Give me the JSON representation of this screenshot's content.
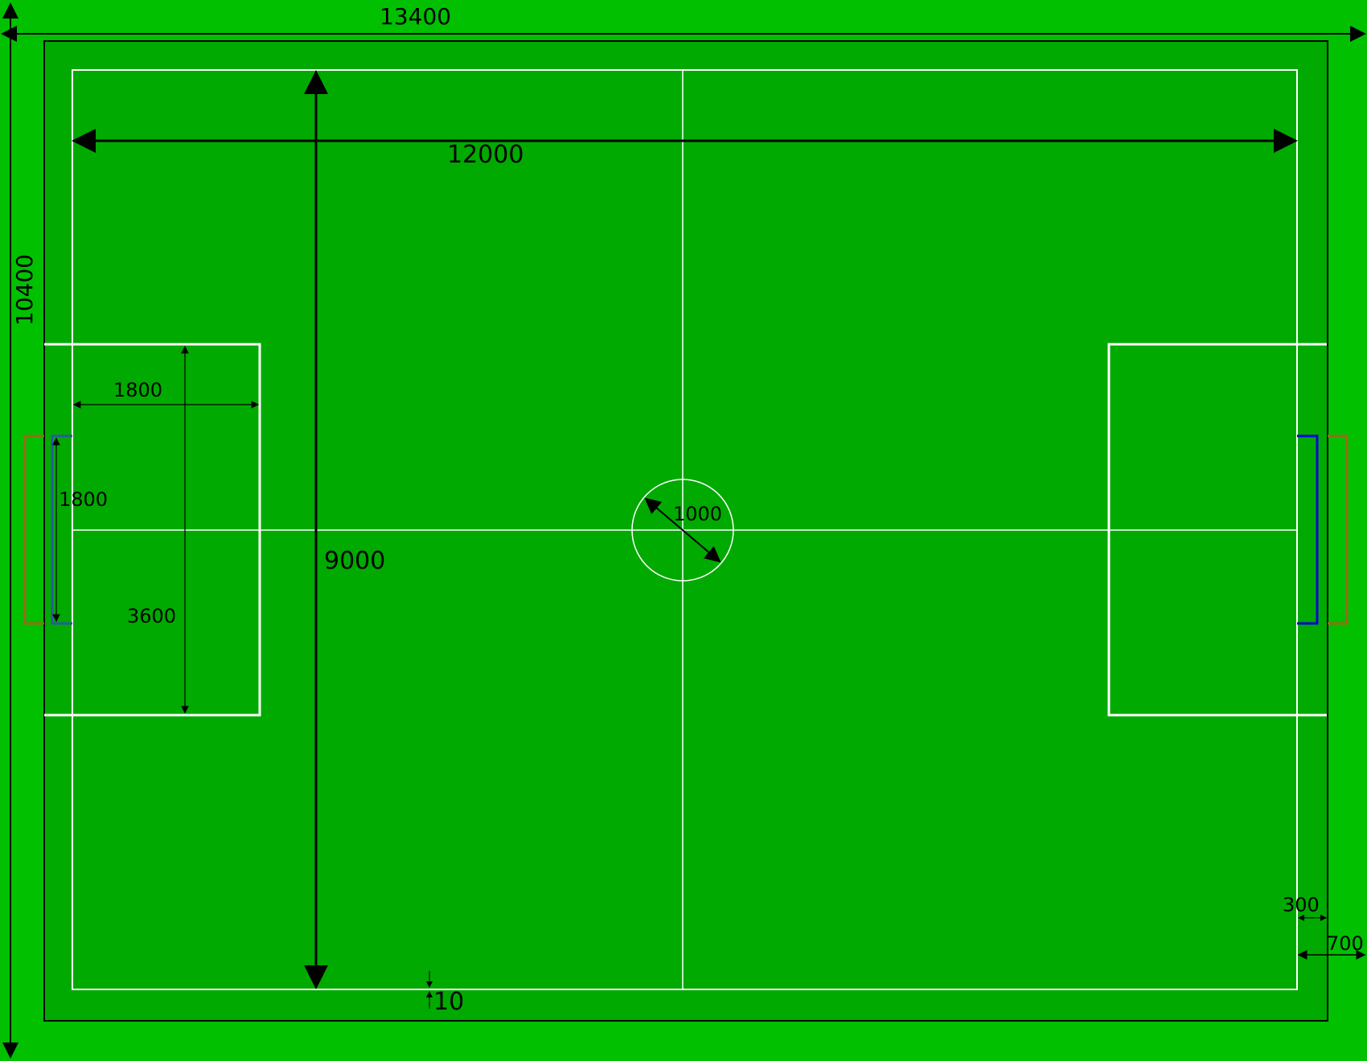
{
  "colors": {
    "outer_area": "#00c000",
    "carpet": "#00aa00",
    "field_line": "#ffffff",
    "wall": "#000000",
    "goal_left_inner": "#2a5aa0",
    "goal_right_inner": "#0000dd",
    "goal_outer": "#9a6a1a"
  },
  "dimensions": {
    "total_length": "13400",
    "total_width": "10400",
    "field_length": "12000",
    "field_width": "9000",
    "penalty_depth": "1800",
    "goal_width": "1800",
    "penalty_width": "3600",
    "center_circle": "1000",
    "line_width": "10",
    "boundary_300": "300",
    "boundary_700": "700"
  }
}
